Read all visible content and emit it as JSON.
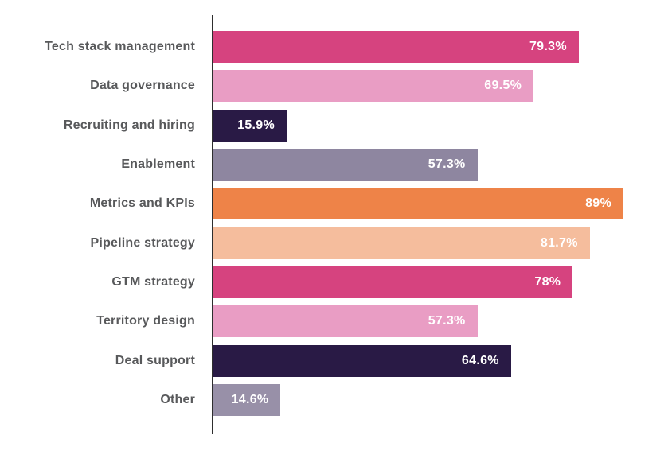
{
  "chart_data": {
    "type": "bar",
    "orientation": "horizontal",
    "title": "",
    "xlabel": "",
    "ylabel": "",
    "xlim": [
      0,
      89
    ],
    "grid": false,
    "legend": false,
    "categories": [
      "Tech stack management",
      "Data governance",
      "Recruiting and hiring",
      "Enablement",
      "Metrics and KPIs",
      "Pipeline strategy",
      "GTM strategy",
      "Territory design",
      "Deal support",
      "Other"
    ],
    "values": [
      79.3,
      69.5,
      15.9,
      57.3,
      89,
      81.7,
      78,
      57.3,
      64.6,
      14.6
    ],
    "value_labels": [
      "79.3%",
      "69.5%",
      "15.9%",
      "57.3%",
      "89%",
      "81.7%",
      "78%",
      "57.3%",
      "64.6%",
      "14.6%"
    ],
    "bar_colors": [
      "#d6437f",
      "#e99dc4",
      "#291a45",
      "#8e86a0",
      "#ee8348",
      "#f5bd9d",
      "#d6437f",
      "#e99dc4",
      "#291a45",
      "#9890a8"
    ],
    "colors": {
      "background": "#ffffff",
      "axis_line": "#2e2e2e",
      "category_label": "#58595b",
      "value_label": "#ffffff"
    }
  }
}
